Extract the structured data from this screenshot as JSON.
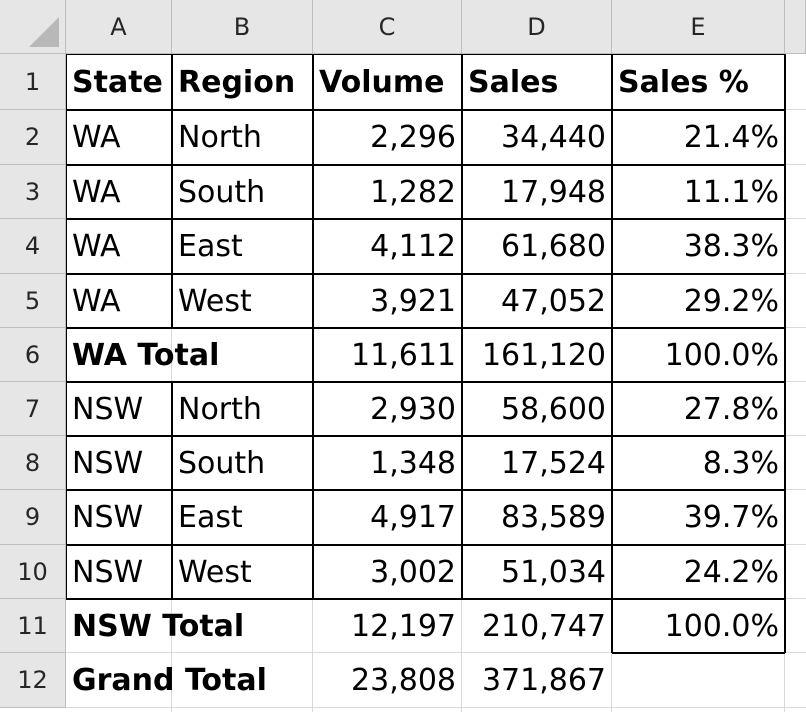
{
  "columns": [
    "A",
    "B",
    "C",
    "D",
    "E"
  ],
  "rows": [
    "1",
    "2",
    "3",
    "4",
    "5",
    "6",
    "7",
    "8",
    "9",
    "10",
    "11",
    "12"
  ],
  "cells": {
    "r1": [
      "State",
      "Region",
      "Volume",
      "Sales",
      "Sales %"
    ],
    "r2": [
      "WA",
      "North",
      "2,296",
      "34,440",
      "21.4%"
    ],
    "r3": [
      "WA",
      "South",
      "1,282",
      "17,948",
      "11.1%"
    ],
    "r4": [
      "WA",
      "East",
      "4,112",
      "61,680",
      "38.3%"
    ],
    "r5": [
      "WA",
      "West",
      "3,921",
      "47,052",
      "29.2%"
    ],
    "r6": [
      "WA Total",
      "",
      "11,611",
      "161,120",
      "100.0%"
    ],
    "r7": [
      "NSW",
      "North",
      "2,930",
      "58,600",
      "27.8%"
    ],
    "r8": [
      "NSW",
      "South",
      "1,348",
      "17,524",
      "8.3%"
    ],
    "r9": [
      "NSW",
      "East",
      "4,917",
      "83,589",
      "39.7%"
    ],
    "r10": [
      "NSW",
      "West",
      "3,002",
      "51,034",
      "24.2%"
    ],
    "r11": [
      "NSW Total",
      "",
      "12,197",
      "210,747",
      "100.0%"
    ],
    "r12": [
      "Grand Total",
      "",
      "23,808",
      "371,867",
      ""
    ]
  },
  "colors": {
    "header_bg": "#e6e6e6",
    "gridline": "#d9d9d9",
    "border": "#000000"
  }
}
